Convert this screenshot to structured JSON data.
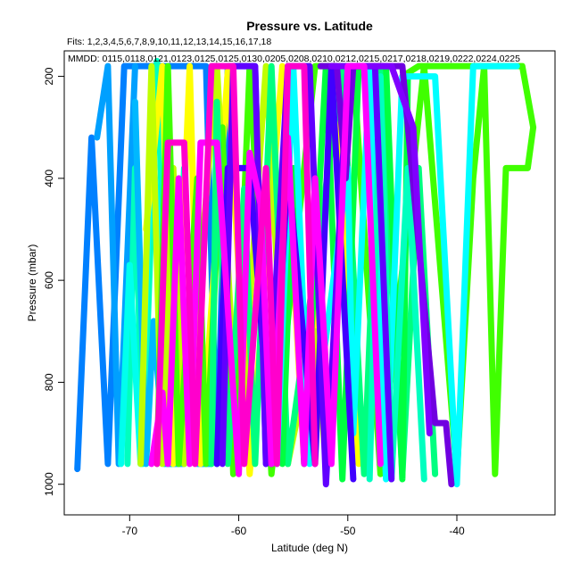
{
  "chart_data": {
    "type": "line",
    "title": "Pressure vs. Latitude",
    "subtitle_fits": "Fits: 1,2,3,4,5,6,7,8,9,10,11,12,13,14,15,16,17,18",
    "annotation_mmdd": "MMDD: 0115,0118,0121,0123,0125,0125,0130,0205,0208,0210,0212,0215,0217,0218,0219,0222,0224,0225",
    "xlabel": "Latitude (deg N)",
    "ylabel": "Pressure (mbar)",
    "xlim": [
      -76,
      -31
    ],
    "ylim": [
      1060,
      150
    ],
    "y_reversed": true,
    "xticks": [
      -70,
      -60,
      -50,
      -40
    ],
    "xtick_labels": [
      "-70",
      "-60",
      "-50",
      "-40"
    ],
    "yticks": [
      200,
      400,
      600,
      800,
      1000
    ],
    "ytick_labels": [
      "200",
      "400",
      "600",
      "800",
      "1000"
    ],
    "grid": false,
    "series": [
      {
        "color": "#0080ff",
        "points": [
          [
            -74.8,
            970
          ],
          [
            -73.5,
            320
          ],
          [
            -72.0,
            960
          ],
          [
            -70.5,
            180
          ],
          [
            -63.0,
            180
          ],
          [
            -62.0,
            960
          ],
          [
            -61.0,
            180
          ],
          [
            -58.5,
            180
          ],
          [
            -57.5,
            960
          ]
        ]
      },
      {
        "color": "#00a0ff",
        "points": [
          [
            -73.0,
            320
          ],
          [
            -72.0,
            180
          ],
          [
            -71.0,
            960
          ],
          [
            -69.5,
            180
          ]
        ]
      },
      {
        "color": "#00ffbf",
        "points": [
          [
            -70.2,
            960
          ],
          [
            -69.5,
            380
          ],
          [
            -68.8,
            960
          ],
          [
            -67.5,
            170
          ],
          [
            -66.2,
            960
          ],
          [
            -65.0,
            380
          ]
        ]
      },
      {
        "color": "#00ffee",
        "points": [
          [
            -70.8,
            960
          ],
          [
            -70.0,
            570
          ],
          [
            -69.0,
            960
          ],
          [
            -68.0,
            300
          ],
          [
            -66.0,
            960
          ]
        ]
      },
      {
        "color": "#00b8ff",
        "points": [
          [
            -69.5,
            250
          ],
          [
            -68.5,
            960
          ],
          [
            -67.8,
            680
          ],
          [
            -66.8,
            960
          ],
          [
            -65.0,
            960
          ],
          [
            -64.5,
            850
          ],
          [
            -63.8,
            960
          ],
          [
            -62.5,
            960
          ]
        ]
      },
      {
        "color": "#ffff00",
        "points": [
          [
            -68.5,
            500
          ],
          [
            -67.0,
            180
          ],
          [
            -66.0,
            960
          ],
          [
            -64.5,
            180
          ],
          [
            -63.5,
            960
          ],
          [
            -61.0,
            190
          ],
          [
            -59.0,
            980
          ],
          [
            -56.0,
            180
          ],
          [
            -54.0,
            960
          ],
          [
            -51.0,
            180
          ],
          [
            -49.0,
            960
          ]
        ]
      },
      {
        "color": "#c0ff00",
        "points": [
          [
            -69.0,
            960
          ],
          [
            -68.0,
            180
          ],
          [
            -67.0,
            960
          ],
          [
            -66.0,
            380
          ],
          [
            -65.0,
            960
          ],
          [
            -62.0,
            180
          ],
          [
            -60.0,
            960
          ],
          [
            -57.5,
            180
          ],
          [
            -55.5,
            960
          ],
          [
            -53.0,
            700
          ],
          [
            -52.0,
            960
          ]
        ]
      },
      {
        "color": "#40ff00",
        "points": [
          [
            -67.5,
            960
          ],
          [
            -66.5,
            180
          ],
          [
            -65.5,
            960
          ],
          [
            -63.8,
            400
          ],
          [
            -63.0,
            960
          ],
          [
            -61.5,
            300
          ],
          [
            -60.5,
            980
          ],
          [
            -59.0,
            180
          ],
          [
            -57.0,
            980
          ],
          [
            -53.0,
            180
          ],
          [
            -49.5,
            180
          ],
          [
            -47.0,
            980
          ],
          [
            -43.0,
            180
          ],
          [
            -40.0,
            980
          ],
          [
            -38.5,
            400
          ],
          [
            -37.5,
            180
          ],
          [
            -36.5,
            980
          ],
          [
            -35.5,
            380
          ],
          [
            -33.5,
            380
          ],
          [
            -33.0,
            300
          ],
          [
            -34.0,
            180
          ],
          [
            -43.5,
            180
          ],
          [
            -45.0,
            200
          ]
        ]
      },
      {
        "color": "#00ff80",
        "points": [
          [
            -62.5,
            960
          ],
          [
            -62.0,
            250
          ],
          [
            -61.0,
            960
          ],
          [
            -59.5,
            420
          ],
          [
            -58.5,
            960
          ],
          [
            -57.0,
            180
          ],
          [
            -55.5,
            960
          ],
          [
            -50.5,
            180
          ],
          [
            -48.5,
            980
          ],
          [
            -47.0,
            180
          ],
          [
            -45.0,
            980
          ],
          [
            -43.5,
            380
          ],
          [
            -42.0,
            980
          ]
        ]
      },
      {
        "color": "#00ff40",
        "points": [
          [
            -56.0,
            960
          ],
          [
            -55.0,
            380
          ],
          [
            -54.0,
            960
          ],
          [
            -52.0,
            180
          ],
          [
            -50.5,
            990
          ],
          [
            -49.0,
            180
          ],
          [
            -46.5,
            180
          ],
          [
            -45.0,
            990
          ],
          [
            -44.5,
            200
          ]
        ]
      },
      {
        "color": "#00ffff",
        "points": [
          [
            -56.5,
            960
          ],
          [
            -55.0,
            180
          ],
          [
            -53.5,
            960
          ],
          [
            -50.0,
            380
          ],
          [
            -49.5,
            900
          ],
          [
            -48.0,
            180
          ],
          [
            -46.5,
            990
          ],
          [
            -45.0,
            200
          ],
          [
            -42.0,
            200
          ],
          [
            -40.0,
            1000
          ],
          [
            -38.5,
            180
          ],
          [
            -34.5,
            180
          ]
        ]
      },
      {
        "color": "#00ffc0",
        "points": [
          [
            -48.0,
            990
          ],
          [
            -47.0,
            200
          ],
          [
            -46.0,
            990
          ],
          [
            -44.5,
            380
          ],
          [
            -43.0,
            990
          ]
        ]
      },
      {
        "color": "#4000ff",
        "points": [
          [
            -62.0,
            960
          ],
          [
            -61.0,
            380
          ],
          [
            -59.0,
            380
          ],
          [
            -57.0,
            960
          ],
          [
            -55.5,
            380
          ],
          [
            -53.0,
            960
          ],
          [
            -51.5,
            180
          ],
          [
            -49.5,
            990
          ]
        ]
      },
      {
        "color": "#6000ff",
        "points": [
          [
            -61.5,
            960
          ],
          [
            -60.5,
            180
          ],
          [
            -58.5,
            180
          ],
          [
            -57.5,
            960
          ],
          [
            -55.5,
            180
          ],
          [
            -53.5,
            180
          ],
          [
            -52.0,
            1000
          ],
          [
            -50.0,
            180
          ],
          [
            -47.5,
            180
          ],
          [
            -46.0,
            990
          ]
        ]
      },
      {
        "color": "#7000e0",
        "points": [
          [
            -52.5,
            180
          ],
          [
            -51.0,
            180
          ],
          [
            -50.2,
            400
          ],
          [
            -49.5,
            180
          ],
          [
            -45.0,
            180
          ],
          [
            -42.0,
            880
          ],
          [
            -41.0,
            880
          ],
          [
            -40.5,
            1000
          ]
        ]
      },
      {
        "color": "#8000ff",
        "points": [
          [
            -51.5,
            180
          ],
          [
            -49.0,
            180
          ],
          [
            -46.0,
            180
          ],
          [
            -44.0,
            300
          ],
          [
            -42.5,
            900
          ]
        ]
      },
      {
        "color": "#ff00ff",
        "points": [
          [
            -68.0,
            960
          ],
          [
            -67.0,
            820
          ],
          [
            -66.5,
            960
          ],
          [
            -65.5,
            400
          ],
          [
            -64.5,
            960
          ],
          [
            -63.5,
            330
          ],
          [
            -62.0,
            330
          ],
          [
            -60.0,
            980
          ],
          [
            -59.0,
            350
          ],
          [
            -58.0,
            450
          ],
          [
            -57.0,
            960
          ],
          [
            -55.5,
            320
          ],
          [
            -54.0,
            960
          ],
          [
            -53.0,
            400
          ],
          [
            -51.5,
            960
          ],
          [
            -50.0,
            180
          ],
          [
            -48.5,
            180
          ],
          [
            -47.0,
            960
          ]
        ]
      },
      {
        "color": "#ff00cc",
        "points": [
          [
            -67.5,
            960
          ],
          [
            -66.5,
            330
          ],
          [
            -65.0,
            330
          ],
          [
            -64.0,
            960
          ],
          [
            -62.5,
            180
          ],
          [
            -60.5,
            180
          ],
          [
            -59.5,
            960
          ],
          [
            -57.5,
            380
          ],
          [
            -56.5,
            960
          ],
          [
            -55.5,
            180
          ],
          [
            -54.0,
            180
          ],
          [
            -53.0,
            960
          ]
        ]
      }
    ]
  }
}
